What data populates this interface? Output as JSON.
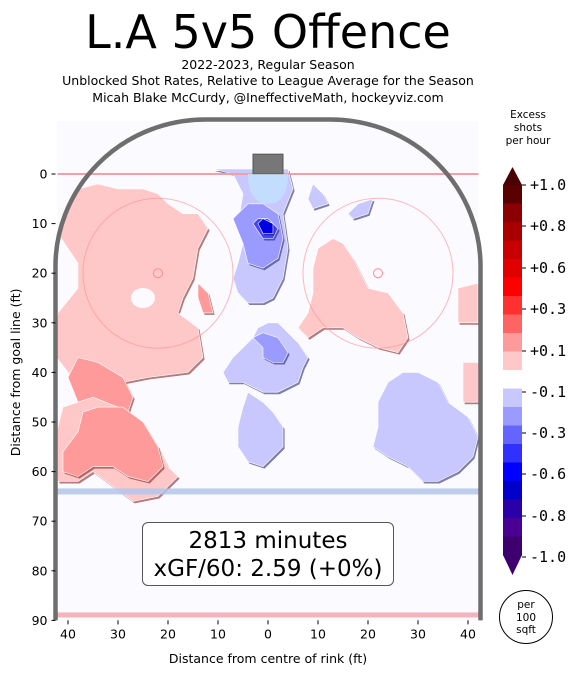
{
  "header": {
    "title": "L.A 5v5 Offence",
    "subtitle_lines": [
      "2022-2023, Regular Season",
      "Unblocked Shot Rates, Relative to League Average for the Season",
      "Micah Blake McCurdy, @IneffectiveMath, hockeyviz.com"
    ]
  },
  "summary_box": {
    "minutes": "2813 minutes",
    "xgf": "xGF/60: 2.59 (+0%)"
  },
  "colorbar": {
    "title_lines": [
      "Excess",
      "shots",
      "per hour"
    ],
    "tick_labels": [
      "+1.0",
      "+0.8",
      "+0.6",
      "+0.3",
      "+0.1",
      "-0.1",
      "-0.3",
      "-0.6",
      "-0.8",
      "-1.0"
    ],
    "colors": [
      "#5a0000",
      "#8b0000",
      "#a80000",
      "#c80000",
      "#e00000",
      "#ff0000",
      "#ff3030",
      "#ff6464",
      "#ff9a9a",
      "#ffc8c8",
      "#ffffff",
      "#c8c8ff",
      "#9a9aff",
      "#6464ff",
      "#3030ff",
      "#0000ff",
      "#0000c8",
      "#2a00a8",
      "#4b0094",
      "#3d006e"
    ],
    "scale_note_lines": [
      "per",
      "100",
      "sqft"
    ]
  },
  "chart_data": {
    "type": "heatmap",
    "title": "L.A 5v5 Offence",
    "xlabel": "Distance from centre of rink (ft)",
    "ylabel": "Distance from goal line (ft)",
    "xlim": [
      42.5,
      -42.5
    ],
    "ylim": [
      90,
      -11
    ],
    "x_ticks": [
      40,
      30,
      20,
      10,
      0,
      10,
      20,
      30,
      40
    ],
    "y_ticks": [
      0,
      10,
      20,
      30,
      40,
      50,
      60,
      70,
      80,
      90
    ],
    "value_range": [
      -1.0,
      1.0
    ],
    "regions": [
      {
        "level": 0.1,
        "points": [
          [
            34,
            2
          ],
          [
            30,
            3
          ],
          [
            25,
            3
          ],
          [
            22,
            4
          ],
          [
            20,
            6
          ],
          [
            17,
            8
          ],
          [
            14,
            8
          ],
          [
            12,
            11
          ],
          [
            14,
            15
          ],
          [
            15,
            21
          ],
          [
            17,
            25
          ],
          [
            18,
            28
          ],
          [
            14,
            31
          ],
          [
            13,
            37
          ],
          [
            16,
            40
          ],
          [
            24,
            41
          ],
          [
            29,
            42
          ],
          [
            31,
            45
          ],
          [
            35,
            44
          ],
          [
            40,
            40
          ],
          [
            43,
            36
          ],
          [
            42,
            28
          ],
          [
            38,
            23
          ],
          [
            38,
            18
          ],
          [
            42,
            12
          ],
          [
            41,
            7
          ],
          [
            38,
            3
          ]
        ]
      },
      {
        "level": 0.3,
        "points": [
          [
            38,
            37
          ],
          [
            34,
            38
          ],
          [
            29,
            41
          ],
          [
            27,
            45
          ],
          [
            28,
            48
          ],
          [
            33,
            48
          ],
          [
            38,
            46
          ],
          [
            40,
            41
          ]
        ]
      },
      {
        "level": 0.1,
        "points": [
          [
            35,
            45
          ],
          [
            30,
            47
          ],
          [
            26,
            50
          ],
          [
            22,
            55
          ],
          [
            20,
            59
          ],
          [
            18,
            61
          ],
          [
            22,
            65
          ],
          [
            27,
            66
          ],
          [
            31,
            63
          ],
          [
            35,
            60
          ],
          [
            38,
            62
          ],
          [
            42,
            62
          ],
          [
            43,
            55
          ],
          [
            41,
            47
          ]
        ]
      },
      {
        "level": 0.3,
        "points": [
          [
            34,
            47
          ],
          [
            29,
            47
          ],
          [
            25,
            50
          ],
          [
            22,
            55
          ],
          [
            21,
            59
          ],
          [
            24,
            62
          ],
          [
            28,
            61
          ],
          [
            31,
            59
          ],
          [
            35,
            59
          ],
          [
            38,
            61
          ],
          [
            41,
            60
          ],
          [
            41,
            56
          ],
          [
            38,
            52
          ],
          [
            37,
            48
          ]
        ]
      },
      {
        "level": 0.3,
        "points": [
          [
            14,
            22
          ],
          [
            12,
            24
          ],
          [
            11,
            28
          ],
          [
            13,
            28
          ],
          [
            14,
            25
          ]
        ]
      },
      {
        "level": 0.1,
        "points": [
          [
            -10,
            15
          ],
          [
            -9,
            19
          ],
          [
            -9,
            24
          ],
          [
            -8,
            28
          ],
          [
            -6,
            31
          ],
          [
            -8,
            33
          ],
          [
            -11,
            31
          ],
          [
            -15,
            31
          ],
          [
            -18,
            33
          ],
          [
            -22,
            35
          ],
          [
            -26,
            36
          ],
          [
            -28,
            33
          ],
          [
            -27,
            28
          ],
          [
            -24,
            24
          ],
          [
            -20,
            23
          ],
          [
            -19,
            21
          ],
          [
            -17,
            17
          ],
          [
            -15,
            14
          ],
          [
            -13,
            13
          ]
        ]
      },
      {
        "level": 0.1,
        "points": [
          [
            -38,
            23
          ],
          [
            -42,
            22
          ],
          [
            -42,
            30
          ],
          [
            -38,
            30
          ]
        ]
      },
      {
        "level": 0.1,
        "points": [
          [
            -39,
            38
          ],
          [
            -43,
            38
          ],
          [
            -43,
            46
          ],
          [
            -39,
            46
          ]
        ]
      },
      {
        "level": -0.1,
        "points": [
          [
            11,
            -1
          ],
          [
            7,
            0
          ],
          [
            5,
            4
          ],
          [
            6,
            10
          ],
          [
            5,
            14
          ],
          [
            6,
            18
          ],
          [
            7,
            21
          ],
          [
            6,
            24
          ],
          [
            4,
            26
          ],
          [
            1,
            26
          ],
          [
            -1,
            25
          ],
          [
            -3,
            21
          ],
          [
            -4,
            15
          ],
          [
            -3,
            8
          ],
          [
            -5,
            3
          ],
          [
            -4,
            -1
          ],
          [
            0,
            -1
          ]
        ]
      },
      {
        "level": -0.1,
        "points": [
          [
            -9,
            2
          ],
          [
            -11,
            4
          ],
          [
            -12,
            6
          ],
          [
            -9,
            7
          ],
          [
            -8,
            5
          ]
        ]
      },
      {
        "level": -0.1,
        "points": [
          [
            -21,
            5
          ],
          [
            -18,
            6
          ],
          [
            -16,
            8
          ],
          [
            -17,
            9
          ],
          [
            -20,
            8
          ]
        ]
      },
      {
        "level": -0.1,
        "points": [
          [
            7,
            37
          ],
          [
            9,
            40
          ],
          [
            8,
            42
          ],
          [
            5,
            42
          ],
          [
            1,
            44
          ],
          [
            -2,
            44
          ],
          [
            -6,
            42
          ],
          [
            -7,
            39
          ],
          [
            -8,
            37
          ],
          [
            -6,
            34
          ],
          [
            -4,
            32
          ],
          [
            -2,
            30
          ],
          [
            0,
            30
          ],
          [
            2,
            31
          ],
          [
            3,
            33
          ]
        ]
      },
      {
        "level": -0.1,
        "points": [
          [
            4,
            44
          ],
          [
            5,
            47
          ],
          [
            6,
            51
          ],
          [
            6,
            55
          ],
          [
            4,
            58
          ],
          [
            1,
            59
          ],
          [
            -1,
            57
          ],
          [
            -3,
            55
          ],
          [
            -3,
            51
          ],
          [
            -1,
            48
          ],
          [
            1,
            46
          ]
        ]
      },
      {
        "level": -0.1,
        "points": [
          [
            -27,
            40
          ],
          [
            -30,
            40
          ],
          [
            -34,
            42
          ],
          [
            -36,
            46
          ],
          [
            -40,
            49
          ],
          [
            -42,
            53
          ],
          [
            -41,
            57
          ],
          [
            -38,
            60
          ],
          [
            -34,
            62
          ],
          [
            -31,
            62
          ],
          [
            -28,
            59
          ],
          [
            -24,
            57
          ],
          [
            -21,
            55
          ],
          [
            -22,
            51
          ],
          [
            -22,
            46
          ],
          [
            -24,
            42
          ]
        ]
      },
      {
        "level": -0.3,
        "points": [
          [
            7,
            9
          ],
          [
            5,
            14
          ],
          [
            4,
            18
          ],
          [
            1,
            19
          ],
          [
            -2,
            17
          ],
          [
            -3,
            13
          ],
          [
            -2,
            8
          ],
          [
            1,
            6
          ],
          [
            4,
            6
          ]
        ]
      },
      {
        "level": -0.3,
        "points": [
          [
            3,
            33
          ],
          [
            1,
            35
          ],
          [
            1,
            37
          ],
          [
            -1,
            38
          ],
          [
            -3,
            38
          ],
          [
            -4,
            36
          ],
          [
            -2,
            33
          ],
          [
            1,
            32
          ]
        ]
      },
      {
        "level": -0.6,
        "points": [
          [
            3,
            10
          ],
          [
            1,
            13
          ],
          [
            -1,
            13
          ],
          [
            -2,
            11
          ],
          [
            0,
            9
          ],
          [
            2,
            9
          ]
        ]
      },
      {
        "level": -0.8,
        "points": [
          [
            2,
            10
          ],
          [
            1,
            12
          ],
          [
            -1,
            12
          ],
          [
            -1,
            10
          ],
          [
            1,
            9
          ]
        ]
      }
    ],
    "shot_free_spots": [
      {
        "x": 25,
        "y": 25,
        "level": 0.0
      }
    ],
    "grid": false
  }
}
